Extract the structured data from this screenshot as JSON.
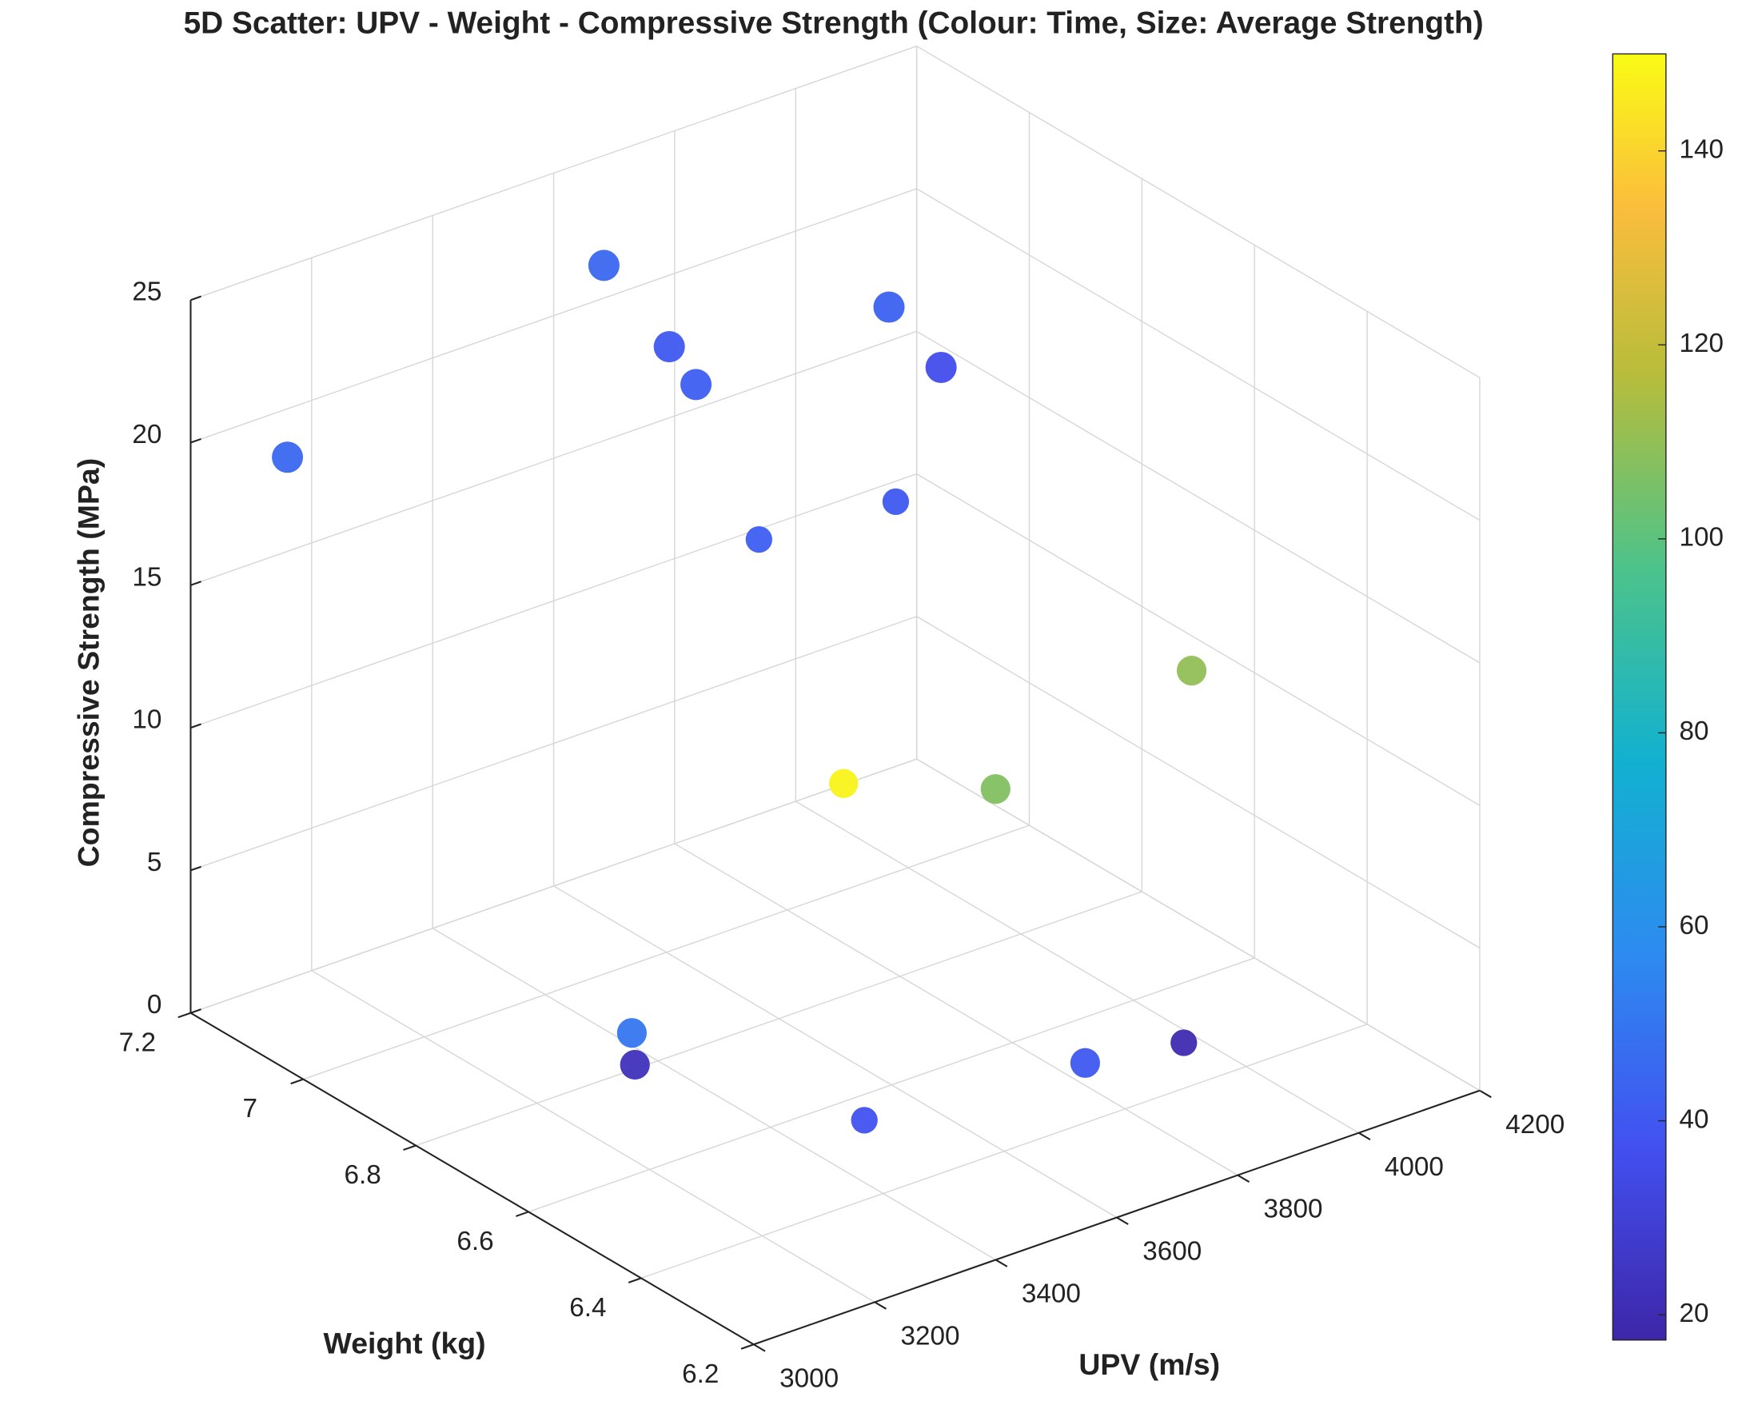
{
  "chart_data": {
    "type": "scatter3d",
    "title": "5D Scatter: UPV - Weight - Compressive Strength (Colour: Time, Size: Average Strength)",
    "xlabel": "UPV (m/s)",
    "ylabel": "Weight (kg)",
    "zlabel": "Compressive Strength (MPa)",
    "x": [
      3590,
      3160,
      3605,
      3556,
      3782,
      3775,
      3607,
      3474,
      4003,
      3772,
      3800,
      3357,
      3269,
      3369,
      3734,
      3897
    ],
    "y": [
      7.1,
      7.2,
      7.0,
      6.9,
      6.8,
      6.7,
      6.6,
      6.7,
      6.5,
      6.6,
      6.9,
      6.8,
      6.7,
      6.4,
      6.4,
      6.4
    ],
    "z": [
      23.0,
      18.3,
      21.2,
      21.4,
      23.6,
      22.7,
      20.4,
      18.9,
      12.7,
      9.1,
      5.6,
      1.3,
      2.0,
      2.8,
      2.1,
      1.6
    ],
    "time": [
      45,
      45,
      40,
      42,
      43,
      36,
      40,
      42,
      110,
      107,
      148,
      50,
      23,
      38,
      40,
      20
    ],
    "size": [
      22,
      22,
      22,
      22,
      22,
      22,
      16,
      16,
      20,
      20,
      19,
      20,
      20,
      16,
      20,
      16
    ],
    "xlim": [
      3000,
      4200
    ],
    "xticks": [
      3000,
      3200,
      3400,
      3600,
      3800,
      4000,
      4200
    ],
    "ylim": [
      6.2,
      7.2
    ],
    "yticks": [
      6.2,
      6.4,
      6.6,
      6.8,
      7,
      7.2
    ],
    "zlim": [
      0,
      25
    ],
    "zticks": [
      0,
      5,
      10,
      15,
      20,
      25
    ],
    "clim": [
      17.4,
      150
    ],
    "cticks": [
      20,
      40,
      60,
      80,
      100,
      120,
      140
    ],
    "colormap": "parula",
    "grid": true
  }
}
